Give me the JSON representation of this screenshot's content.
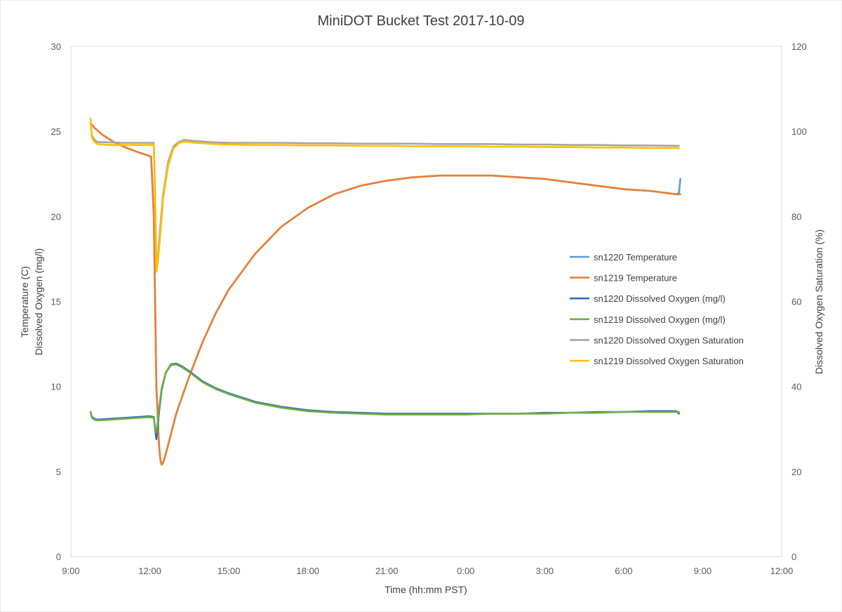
{
  "chart_data": {
    "type": "line",
    "title": "MiniDOT Bucket Test 2017-10-09",
    "xlabel": "Time (hh:mm PST)",
    "ylabel_left": [
      "Temperature (C)",
      "Dissolved Oxygen (mg/l)"
    ],
    "ylabel_right": "Dissolved Oxygen Saturation (%)",
    "x_tick_labels": [
      "9:00",
      "12:00",
      "15:00",
      "18:00",
      "21:00",
      "0:00",
      "3:00",
      "6:00",
      "9:00",
      "12:00"
    ],
    "x_unit": "hours after 9:00 PST on 2017-10-09",
    "xlim": [
      0,
      27
    ],
    "y_left_lim": [
      0,
      30
    ],
    "y_left_ticks": [
      0,
      5,
      10,
      15,
      20,
      25,
      30
    ],
    "y_right_lim": [
      0,
      120
    ],
    "y_right_ticks": [
      0,
      20,
      40,
      60,
      80,
      100,
      120
    ],
    "grid": false,
    "legend_position": "right",
    "series": [
      {
        "name": "sn1220 Temperature",
        "axis": "left",
        "color": "#5B9BD5",
        "x": [
          0.75,
          0.9,
          1.2,
          1.6,
          2.0,
          2.5,
          2.9,
          3.05,
          3.15,
          3.25,
          3.35,
          3.4,
          3.45,
          3.5,
          3.6,
          3.8,
          4.0,
          4.5,
          5.0,
          5.5,
          6.0,
          7.0,
          8.0,
          9.0,
          10.0,
          11.0,
          12.0,
          13.0,
          14.0,
          15.0,
          16.0,
          17.0,
          18.0,
          19.0,
          20.0,
          21.0,
          22.0,
          23.0,
          23.1,
          23.15
        ],
        "y": [
          25.5,
          25.2,
          24.8,
          24.4,
          24.1,
          23.8,
          23.6,
          23.5,
          20.0,
          10.0,
          6.5,
          5.7,
          5.4,
          5.5,
          6.0,
          7.2,
          8.4,
          10.6,
          12.6,
          14.3,
          15.7,
          17.8,
          19.4,
          20.5,
          21.3,
          21.8,
          22.1,
          22.3,
          22.4,
          22.4,
          22.4,
          22.3,
          22.2,
          22.0,
          21.8,
          21.6,
          21.5,
          21.3,
          21.4,
          22.2
        ]
      },
      {
        "name": "sn1219 Temperature",
        "axis": "left",
        "color": "#ED7D31",
        "x": [
          0.75,
          0.9,
          1.2,
          1.6,
          2.0,
          2.5,
          2.9,
          3.05,
          3.15,
          3.25,
          3.35,
          3.4,
          3.45,
          3.5,
          3.6,
          3.8,
          4.0,
          4.5,
          5.0,
          5.5,
          6.0,
          7.0,
          8.0,
          9.0,
          10.0,
          11.0,
          12.0,
          13.0,
          14.0,
          15.0,
          16.0,
          17.0,
          18.0,
          19.0,
          20.0,
          21.0,
          22.0,
          23.0,
          23.1,
          23.15
        ],
        "y": [
          25.5,
          25.2,
          24.8,
          24.4,
          24.1,
          23.8,
          23.6,
          23.5,
          20.0,
          10.0,
          6.5,
          5.7,
          5.4,
          5.5,
          6.0,
          7.2,
          8.4,
          10.6,
          12.6,
          14.3,
          15.7,
          17.8,
          19.4,
          20.5,
          21.3,
          21.8,
          22.1,
          22.3,
          22.4,
          22.4,
          22.4,
          22.3,
          22.2,
          22.0,
          21.8,
          21.6,
          21.5,
          21.3,
          21.3,
          21.3
        ]
      },
      {
        "name": "sn1220 Dissolved Oxygen (mg/l)",
        "axis": "left",
        "color": "#2F6DB5",
        "x": [
          0.75,
          0.8,
          0.9,
          1.0,
          1.5,
          2.0,
          2.5,
          3.0,
          3.15,
          3.2,
          3.25,
          3.3,
          3.35,
          3.45,
          3.6,
          3.8,
          4.0,
          4.2,
          4.5,
          5.0,
          5.5,
          6.0,
          7.0,
          8.0,
          9.0,
          10.0,
          11.0,
          12.0,
          13.0,
          14.0,
          15.0,
          16.0,
          17.0,
          18.0,
          19.0,
          20.0,
          21.0,
          22.0,
          23.0,
          23.1
        ],
        "y": [
          8.5,
          8.2,
          8.1,
          8.05,
          8.1,
          8.15,
          8.2,
          8.25,
          8.2,
          7.5,
          6.9,
          7.6,
          8.5,
          9.8,
          10.8,
          11.3,
          11.35,
          11.2,
          10.9,
          10.3,
          9.9,
          9.6,
          9.1,
          8.8,
          8.6,
          8.5,
          8.45,
          8.4,
          8.4,
          8.4,
          8.4,
          8.4,
          8.4,
          8.45,
          8.45,
          8.5,
          8.5,
          8.55,
          8.55,
          8.4
        ]
      },
      {
        "name": "sn1219 Dissolved Oxygen (mg/l)",
        "axis": "left",
        "color": "#70AD47",
        "x": [
          0.75,
          0.8,
          0.9,
          1.0,
          1.5,
          2.0,
          2.5,
          3.0,
          3.15,
          3.2,
          3.25,
          3.3,
          3.35,
          3.45,
          3.6,
          3.8,
          4.0,
          4.2,
          4.5,
          5.0,
          5.5,
          6.0,
          7.0,
          8.0,
          9.0,
          10.0,
          11.0,
          12.0,
          13.0,
          14.0,
          15.0,
          16.0,
          17.0,
          18.0,
          19.0,
          20.0,
          21.0,
          22.0,
          23.0,
          23.1
        ],
        "y": [
          8.5,
          8.15,
          8.05,
          8.0,
          8.05,
          8.1,
          8.15,
          8.2,
          8.15,
          7.6,
          7.3,
          7.9,
          8.7,
          9.9,
          10.8,
          11.25,
          11.3,
          11.15,
          10.85,
          10.25,
          9.85,
          9.55,
          9.05,
          8.75,
          8.55,
          8.45,
          8.4,
          8.35,
          8.35,
          8.35,
          8.35,
          8.4,
          8.4,
          8.4,
          8.45,
          8.45,
          8.5,
          8.5,
          8.5,
          8.5
        ]
      },
      {
        "name": "sn1220 Dissolved Oxygen Saturation",
        "axis": "right",
        "color": "#A5A5A5",
        "x": [
          0.75,
          0.8,
          0.9,
          1.0,
          1.5,
          2.0,
          2.5,
          3.0,
          3.15,
          3.2,
          3.25,
          3.3,
          3.4,
          3.5,
          3.7,
          3.9,
          4.1,
          4.3,
          4.6,
          5.0,
          5.5,
          6.0,
          7.0,
          8.0,
          9.0,
          10.0,
          11.0,
          12.0,
          13.0,
          14.0,
          15.0,
          16.0,
          17.0,
          18.0,
          19.0,
          20.0,
          21.0,
          22.0,
          23.0,
          23.1
        ],
        "y": [
          102,
          99,
          98,
          97.5,
          97.4,
          97.3,
          97.3,
          97.3,
          97.3,
          85,
          68,
          70,
          78,
          85,
          93,
          96.5,
          97.5,
          98,
          97.8,
          97.6,
          97.4,
          97.3,
          97.3,
          97.3,
          97.2,
          97.2,
          97.1,
          97.1,
          97.1,
          97.0,
          97.0,
          97.0,
          96.9,
          96.9,
          96.8,
          96.8,
          96.7,
          96.7,
          96.6,
          96.6
        ]
      },
      {
        "name": "sn1219 Dissolved Oxygen Saturation",
        "axis": "right",
        "color": "#FFC000",
        "x": [
          0.75,
          0.8,
          0.9,
          1.0,
          1.5,
          2.0,
          2.5,
          3.0,
          3.15,
          3.2,
          3.25,
          3.3,
          3.4,
          3.5,
          3.7,
          3.9,
          4.1,
          4.3,
          4.6,
          5.0,
          5.5,
          6.0,
          7.0,
          8.0,
          9.0,
          10.0,
          11.0,
          12.0,
          13.0,
          14.0,
          15.0,
          16.0,
          17.0,
          18.0,
          19.0,
          20.0,
          21.0,
          22.0,
          23.0,
          23.1
        ],
        "y": [
          103,
          98.5,
          97.5,
          97.0,
          96.8,
          96.8,
          96.8,
          96.8,
          96.8,
          84,
          67,
          69,
          76,
          84,
          92,
          96,
          97.2,
          97.6,
          97.4,
          97.2,
          97.0,
          96.9,
          96.8,
          96.8,
          96.7,
          96.7,
          96.6,
          96.6,
          96.5,
          96.5,
          96.5,
          96.4,
          96.4,
          96.3,
          96.3,
          96.2,
          96.2,
          96.1,
          96.1,
          96.0
        ]
      }
    ]
  }
}
